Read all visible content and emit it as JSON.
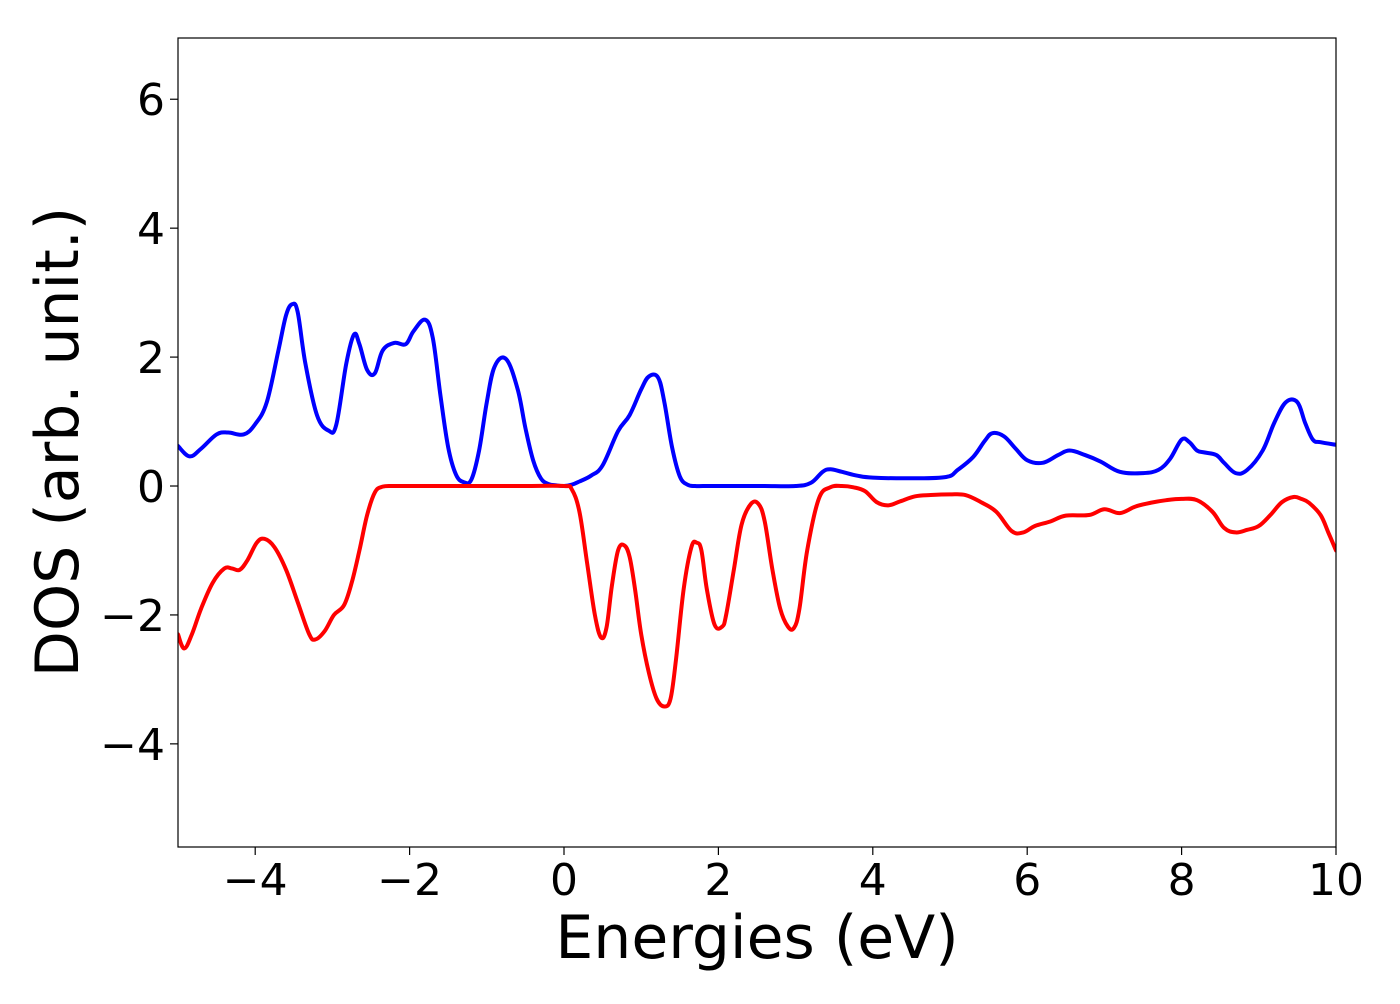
{
  "chart_data": {
    "type": "line",
    "title": "",
    "xlabel": "Energies (eV)",
    "ylabel": "DOS (arb. unit.)",
    "xlim": [
      -5,
      10
    ],
    "ylim": [
      -5.6,
      6.95
    ],
    "xticks": [
      -4,
      -2,
      0,
      2,
      4,
      6,
      8,
      10
    ],
    "yticks": [
      -4,
      -2,
      0,
      2,
      4,
      6
    ],
    "xtick_labels": [
      "−4",
      "−2",
      "0",
      "2",
      "4",
      "6",
      "8",
      "10"
    ],
    "ytick_labels": [
      "−4",
      "−2",
      "0",
      "2",
      "4",
      "6"
    ],
    "grid": false,
    "legend": "none",
    "series": [
      {
        "color": "#0000ff",
        "x": [
          -5.0,
          -4.85,
          -4.7,
          -4.5,
          -4.35,
          -4.15,
          -4.0,
          -3.85,
          -3.7,
          -3.6,
          -3.52,
          -3.45,
          -3.35,
          -3.2,
          -3.05,
          -2.95,
          -2.82,
          -2.72,
          -2.65,
          -2.55,
          -2.45,
          -2.35,
          -2.2,
          -2.05,
          -1.95,
          -1.8,
          -1.7,
          -1.6,
          -1.5,
          -1.4,
          -1.3,
          -1.2,
          -1.1,
          -1.0,
          -0.9,
          -0.75,
          -0.6,
          -0.5,
          -0.4,
          -0.3,
          -0.2,
          -0.1,
          0.0,
          0.1,
          0.2,
          0.35,
          0.5,
          0.7,
          0.85,
          1.0,
          1.1,
          1.22,
          1.3,
          1.4,
          1.5,
          1.6,
          1.7,
          1.8,
          2.0,
          2.3,
          2.6,
          3.0,
          3.2,
          3.35,
          3.45,
          3.6,
          3.8,
          4.0,
          4.5,
          4.95,
          5.1,
          5.3,
          5.45,
          5.55,
          5.7,
          5.85,
          6.0,
          6.2,
          6.4,
          6.55,
          6.75,
          6.95,
          7.2,
          7.5,
          7.7,
          7.85,
          8.0,
          8.1,
          8.2,
          8.3,
          8.45,
          8.55,
          8.7,
          8.85,
          9.05,
          9.2,
          9.35,
          9.5,
          9.6,
          9.7,
          9.8,
          10.0
        ],
        "y": [
          0.62,
          0.46,
          0.58,
          0.8,
          0.83,
          0.8,
          0.96,
          1.3,
          2.1,
          2.65,
          2.82,
          2.7,
          1.9,
          1.1,
          0.86,
          0.95,
          1.9,
          2.35,
          2.2,
          1.8,
          1.75,
          2.1,
          2.22,
          2.2,
          2.4,
          2.58,
          2.3,
          1.4,
          0.6,
          0.18,
          0.06,
          0.1,
          0.55,
          1.3,
          1.85,
          1.97,
          1.5,
          0.9,
          0.4,
          0.12,
          0.03,
          0.01,
          0.0,
          0.02,
          0.07,
          0.16,
          0.32,
          0.85,
          1.1,
          1.5,
          1.7,
          1.68,
          1.3,
          0.6,
          0.15,
          0.02,
          0.0,
          0.0,
          0.0,
          0.0,
          0.0,
          0.0,
          0.05,
          0.22,
          0.26,
          0.22,
          0.16,
          0.13,
          0.12,
          0.14,
          0.25,
          0.45,
          0.7,
          0.82,
          0.77,
          0.58,
          0.4,
          0.36,
          0.48,
          0.55,
          0.48,
          0.38,
          0.22,
          0.2,
          0.25,
          0.42,
          0.72,
          0.68,
          0.55,
          0.52,
          0.48,
          0.36,
          0.2,
          0.25,
          0.55,
          0.98,
          1.3,
          1.3,
          0.98,
          0.72,
          0.68,
          0.64
        ]
      },
      {
        "color": "#ff0000",
        "x": [
          -5.0,
          -4.92,
          -4.82,
          -4.7,
          -4.55,
          -4.4,
          -4.3,
          -4.2,
          -4.1,
          -3.98,
          -3.88,
          -3.75,
          -3.6,
          -3.45,
          -3.3,
          -3.22,
          -3.1,
          -2.98,
          -2.85,
          -2.75,
          -2.65,
          -2.55,
          -2.45,
          -2.35,
          -2.2,
          -2.0,
          -1.5,
          -1.0,
          -0.5,
          0.0,
          0.1,
          0.2,
          0.3,
          0.4,
          0.48,
          0.55,
          0.62,
          0.7,
          0.78,
          0.85,
          0.92,
          1.0,
          1.1,
          1.2,
          1.3,
          1.38,
          1.45,
          1.55,
          1.65,
          1.72,
          1.78,
          1.85,
          1.95,
          2.05,
          2.1,
          2.2,
          2.3,
          2.42,
          2.52,
          2.6,
          2.7,
          2.8,
          2.9,
          2.98,
          3.05,
          3.15,
          3.3,
          3.45,
          3.6,
          3.75,
          3.9,
          4.05,
          4.2,
          4.35,
          4.55,
          4.75,
          5.0,
          5.2,
          5.4,
          5.6,
          5.8,
          5.95,
          6.1,
          6.3,
          6.5,
          6.8,
          7.0,
          7.2,
          7.4,
          7.6,
          7.8,
          8.0,
          8.2,
          8.4,
          8.55,
          8.7,
          8.85,
          9.0,
          9.15,
          9.3,
          9.45,
          9.55,
          9.65,
          9.8,
          9.9,
          10.0
        ],
        "y": [
          -2.3,
          -2.52,
          -2.3,
          -1.9,
          -1.5,
          -1.28,
          -1.28,
          -1.3,
          -1.15,
          -0.88,
          -0.82,
          -0.95,
          -1.3,
          -1.8,
          -2.3,
          -2.38,
          -2.25,
          -2.0,
          -1.85,
          -1.5,
          -1.0,
          -0.45,
          -0.1,
          -0.01,
          0.0,
          0.0,
          0.0,
          0.0,
          0.0,
          0.0,
          -0.05,
          -0.4,
          -1.2,
          -2.0,
          -2.35,
          -2.2,
          -1.55,
          -1.0,
          -0.92,
          -1.1,
          -1.6,
          -2.3,
          -2.9,
          -3.3,
          -3.42,
          -3.3,
          -2.7,
          -1.6,
          -0.95,
          -0.88,
          -1.0,
          -1.6,
          -2.15,
          -2.18,
          -2.0,
          -1.3,
          -0.6,
          -0.28,
          -0.28,
          -0.55,
          -1.3,
          -1.9,
          -2.18,
          -2.2,
          -1.9,
          -1.0,
          -0.2,
          -0.02,
          0.0,
          -0.02,
          -0.08,
          -0.25,
          -0.3,
          -0.24,
          -0.16,
          -0.14,
          -0.13,
          -0.14,
          -0.25,
          -0.4,
          -0.7,
          -0.72,
          -0.62,
          -0.55,
          -0.46,
          -0.45,
          -0.36,
          -0.42,
          -0.32,
          -0.26,
          -0.22,
          -0.2,
          -0.22,
          -0.4,
          -0.65,
          -0.72,
          -0.68,
          -0.62,
          -0.45,
          -0.25,
          -0.17,
          -0.2,
          -0.26,
          -0.45,
          -0.72,
          -1.0
        ]
      }
    ]
  }
}
